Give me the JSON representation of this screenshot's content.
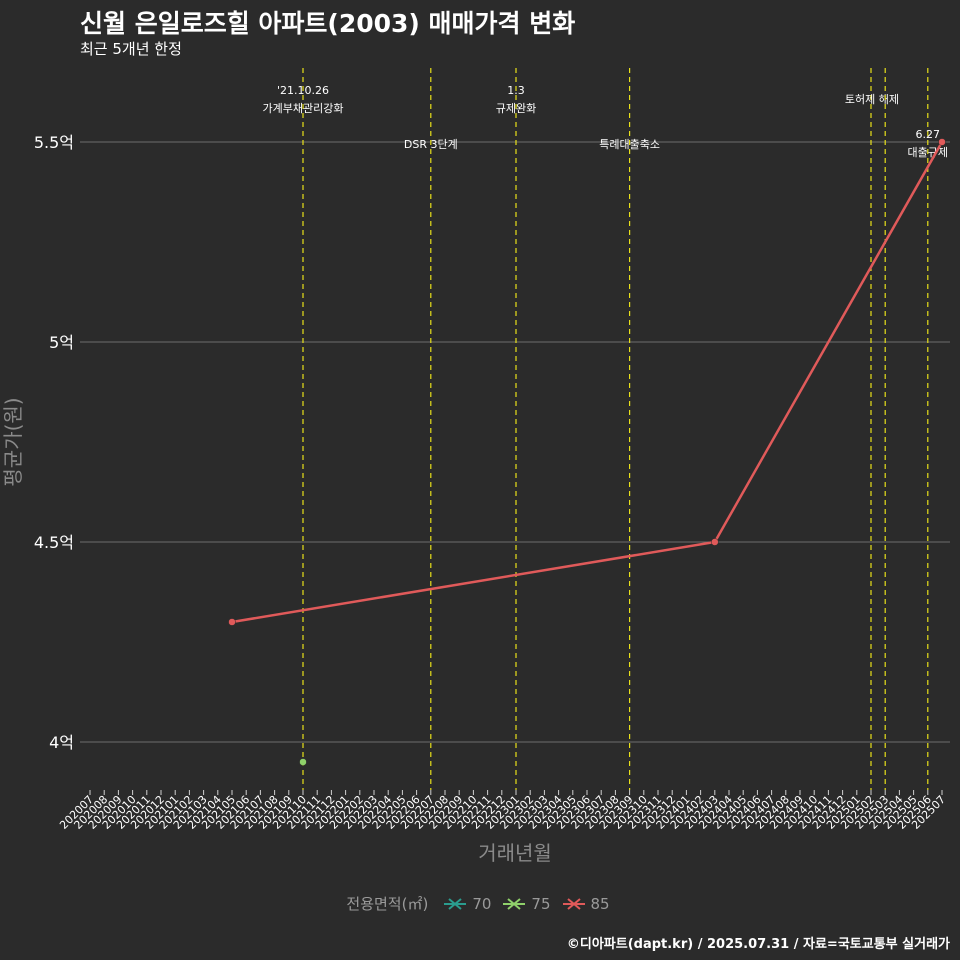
{
  "header": {
    "title": "신월 은일로즈힐 아파트(2003) 매매가격 변화",
    "subtitle": "최근 5개년 한정"
  },
  "footer": {
    "caption": "©디아파트(dapt.kr) / 2025.07.31 / 자료=국토교통부 실거래가"
  },
  "legend": {
    "title": "전용면적(㎡)",
    "items": [
      {
        "label": "70",
        "color": "#2a9d8f"
      },
      {
        "label": "75",
        "color": "#8fd16a"
      },
      {
        "label": "85",
        "color": "#e05a5a"
      }
    ]
  },
  "chart_data": {
    "type": "line",
    "title": "신월 은일로즈힐 아파트(2003) 매매가격 변화",
    "subtitle": "최근 5개년 한정",
    "xlabel": "거래년월",
    "ylabel": "평균가(원)",
    "ylim": [
      3.88,
      5.68
    ],
    "yticks": [
      4,
      4.5,
      5,
      5.5
    ],
    "ytick_labels": [
      "4억",
      "4.5억",
      "5억",
      "5.5억"
    ],
    "categories": [
      "202007",
      "202008",
      "202009",
      "202010",
      "202011",
      "202012",
      "202101",
      "202102",
      "202103",
      "202104",
      "202105",
      "202106",
      "202107",
      "202108",
      "202109",
      "202110",
      "202111",
      "202112",
      "202201",
      "202202",
      "202203",
      "202204",
      "202205",
      "202206",
      "202207",
      "202208",
      "202209",
      "202210",
      "202211",
      "202212",
      "202301",
      "202302",
      "202303",
      "202304",
      "202305",
      "202306",
      "202307",
      "202308",
      "202309",
      "202310",
      "202311",
      "202312",
      "202401",
      "202402",
      "202403",
      "202404",
      "202405",
      "202406",
      "202407",
      "202408",
      "202409",
      "202410",
      "202411",
      "202412",
      "202501",
      "202502",
      "202503",
      "202504",
      "202505",
      "202506",
      "202507"
    ],
    "series": [
      {
        "name": "70",
        "color": "#2a9d8f",
        "points": []
      },
      {
        "name": "75",
        "color": "#8fd16a",
        "points": [
          {
            "x": "202110",
            "y": 3.95
          }
        ]
      },
      {
        "name": "85",
        "color": "#e05a5a",
        "points": [
          {
            "x": "202105",
            "y": 4.3
          },
          {
            "x": "202403",
            "y": 4.5
          },
          {
            "x": "202507",
            "y": 5.5
          }
        ]
      }
    ],
    "events": [
      {
        "x": "202110",
        "lines": [
          "'21.10.26",
          "가계부채관리강화"
        ],
        "row": 1
      },
      {
        "x": "202207",
        "lines": [
          "DSR 3단계"
        ],
        "row": 2
      },
      {
        "x": "202301",
        "lines": [
          "1.3",
          "규제완화"
        ],
        "row": 1
      },
      {
        "x": "202309",
        "lines": [
          "특례대출축소"
        ],
        "row": 2
      },
      {
        "x": "202502",
        "lines": [
          "토허제 해제"
        ],
        "row": 1,
        "anchor": "end"
      },
      {
        "x": "202503",
        "lines": [],
        "row": 1
      },
      {
        "x": "202506",
        "lines": [
          "6.27",
          "대출규제"
        ],
        "row": 3
      }
    ],
    "grid": true,
    "legend_position": "bottom"
  }
}
